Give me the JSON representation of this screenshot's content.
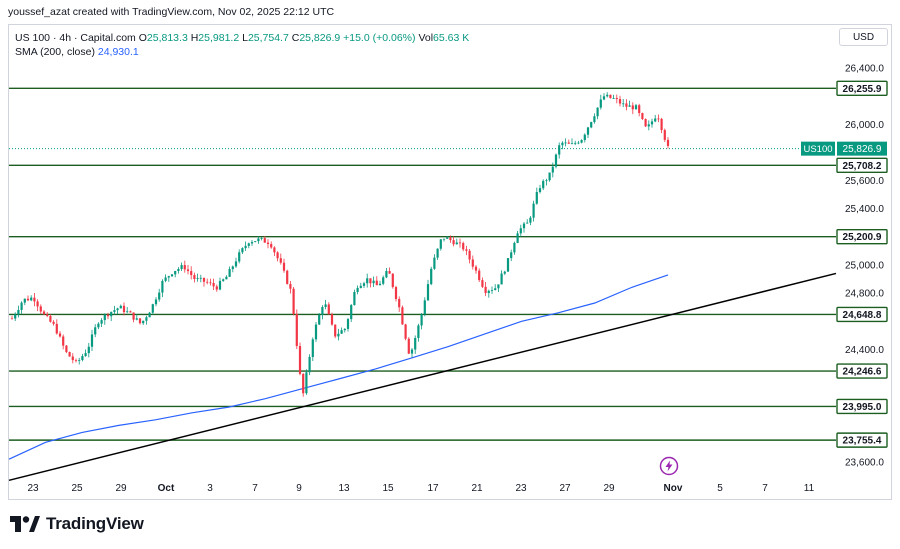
{
  "header": {
    "credit": "youssef_azat created with TradingView.com, Nov 02, 2025 22:12 UTC"
  },
  "legend": {
    "symbol": "US 100 · 4h · Capital.com",
    "o_label": "O",
    "o_value": "25,813.3",
    "h_label": "H",
    "h_value": "25,981.2",
    "l_label": "L",
    "l_value": "25,754.7",
    "c_label": "C",
    "c_value": "25,826.9",
    "change": "+15.0 (+0.06%)",
    "vol_label": "Vol",
    "vol_value": "65.63 K",
    "sma_label": "SMA (200, close)",
    "sma_value": "24,930.1"
  },
  "toolbar": {
    "currency": "USD"
  },
  "footer": {
    "brand": "TradingView"
  },
  "colors": {
    "up": "#089981",
    "down": "#f23645",
    "level": "#1b5e20",
    "sma": "#2962ff",
    "trend": "#000000",
    "axis_text": "#131722"
  },
  "icons": {
    "brand_logo": "tradingview-logo-icon",
    "flash": "lightning-icon"
  },
  "chart_data": {
    "type": "candlestick",
    "symbol": "US100",
    "timeframe": "4h",
    "ylim": [
      23500,
      26550
    ],
    "price_ticks": [
      "26,400.0",
      "26,000.0",
      "25,600.0",
      "25,400.0",
      "25,000.0",
      "24,800.0",
      "24,400.0",
      "23,600.0"
    ],
    "price_tick_values": [
      26400,
      26000,
      25600,
      25400,
      25000,
      24800,
      24400,
      23600
    ],
    "time_ticks": [
      "23",
      "25",
      "29",
      "Oct",
      "3",
      "7",
      "9",
      "13",
      "15",
      "17",
      "21",
      "23",
      "27",
      "29",
      "Nov",
      "5",
      "7",
      "11"
    ],
    "bold_time_ticks": [
      "Oct",
      "Nov"
    ],
    "horizontal_levels": [
      {
        "label": "26,255.9",
        "value": 26255.9
      },
      {
        "label": "25,708.2",
        "value": 25708.2
      },
      {
        "label": "25,200.9",
        "value": 25200.9
      },
      {
        "label": "24,648.8",
        "value": 24648.8
      },
      {
        "label": "24,246.6",
        "value": 24246.6
      },
      {
        "label": "23,995.0",
        "value": 23995.0
      },
      {
        "label": "23,755.4",
        "value": 23755.4
      }
    ],
    "last_price": {
      "symbol": "US100",
      "value": 25826.9,
      "label": "25,826.9"
    },
    "trendline": {
      "start_value": 23470,
      "end_value": 24940
    },
    "sma_path": [
      23620,
      23740,
      23810,
      23860,
      23900,
      23950,
      23990,
      24050,
      24120,
      24190,
      24260,
      24340,
      24420,
      24510,
      24600,
      24660,
      24730,
      24840,
      24930
    ],
    "candles_path": [
      24620,
      24750,
      24770,
      24640,
      24560,
      24380,
      24300,
      24400,
      24600,
      24660,
      24700,
      24650,
      24580,
      24700,
      24880,
      24960,
      24990,
      24900,
      24880,
      24840,
      24920,
      25060,
      25170,
      25180,
      25160,
      25000,
      24800,
      24050,
      24500,
      24750,
      24500,
      24550,
      24850,
      24900,
      24850,
      24960,
      24700,
      24350,
      24620,
      24980,
      25200,
      25170,
      25120,
      24980,
      24820,
      24840,
      25000,
      25240,
      25300,
      25550,
      25640,
      25870,
      25850,
      25900,
      26050,
      26200,
      26180,
      26130,
      26120,
      25960,
      26080,
      25830
    ]
  }
}
